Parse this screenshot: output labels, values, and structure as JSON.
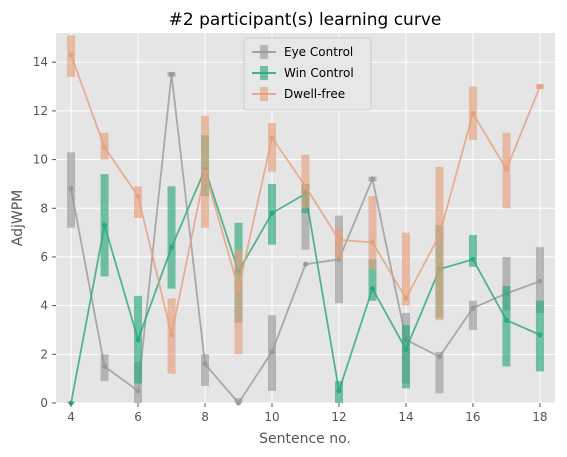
{
  "chart_data": {
    "type": "line",
    "title": "#2 participant(s) learning curve",
    "xlabel": "Sentence no.",
    "ylabel": "AdjWPM",
    "xlim": [
      3.55,
      18.45
    ],
    "ylim": [
      0,
      15.2
    ],
    "xticks": [
      4,
      6,
      8,
      10,
      12,
      14,
      16,
      18
    ],
    "yticks": [
      0,
      2,
      4,
      6,
      8,
      10,
      12,
      14
    ],
    "grid": true,
    "legend_position": "upper-center",
    "x": [
      4,
      5,
      6,
      7,
      8,
      9,
      10,
      11,
      12,
      13,
      14,
      15,
      16,
      17,
      18
    ],
    "series": [
      {
        "name": "Eye Control",
        "color": "#999999",
        "values": [
          8.8,
          1.5,
          0.5,
          13.5,
          1.6,
          0.0,
          2.1,
          5.7,
          5.9,
          9.2,
          2.6,
          1.9,
          3.9,
          4.5,
          5.0
        ],
        "boxes": [
          [
            7.2,
            10.3
          ],
          [
            0.9,
            2.0
          ],
          [
            0.0,
            1.7
          ],
          [
            13.4,
            13.6
          ],
          [
            0.7,
            2.0
          ],
          [
            0.0,
            0.2
          ],
          [
            0.5,
            3.6
          ],
          [
            6.3,
            9.0
          ],
          [
            4.1,
            7.7
          ],
          [
            9.1,
            9.3
          ],
          [
            0.8,
            3.7
          ],
          [
            0.4,
            2.1
          ],
          [
            3.0,
            4.2
          ],
          [
            3.8,
            6.0
          ],
          [
            3.7,
            6.4
          ]
        ]
      },
      {
        "name": "Win Control",
        "color": "#2ca87a",
        "values": [
          0.0,
          7.3,
          2.6,
          6.4,
          9.6,
          5.4,
          7.8,
          8.6,
          0.5,
          4.7,
          2.2,
          5.5,
          5.9,
          3.4,
          2.8
        ],
        "boxes": [
          [
            0.0,
            0.05
          ],
          [
            5.2,
            9.4
          ],
          [
            0.8,
            4.4
          ],
          [
            4.7,
            8.9
          ],
          [
            8.5,
            11.0
          ],
          [
            3.3,
            7.4
          ],
          [
            6.5,
            9.0
          ],
          [
            7.8,
            9.0
          ],
          [
            0.0,
            0.9
          ],
          [
            4.2,
            5.9
          ],
          [
            0.6,
            3.2
          ],
          [
            3.5,
            7.3
          ],
          [
            5.6,
            6.9
          ],
          [
            1.5,
            4.8
          ],
          [
            1.3,
            4.2
          ]
        ]
      },
      {
        "name": "Dwell-free",
        "color": "#e5a07e",
        "values": [
          14.3,
          10.5,
          8.5,
          2.8,
          9.5,
          4.7,
          10.9,
          8.9,
          6.7,
          6.6,
          4.3,
          6.9,
          11.9,
          9.6,
          13.0
        ],
        "boxes": [
          [
            13.4,
            15.1
          ],
          [
            10.0,
            11.1
          ],
          [
            7.6,
            8.9
          ],
          [
            1.2,
            4.3
          ],
          [
            7.2,
            11.8
          ],
          [
            2.0,
            6.3
          ],
          [
            9.5,
            11.5
          ],
          [
            8.0,
            10.2
          ],
          [
            5.9,
            7.2
          ],
          [
            5.5,
            8.5
          ],
          [
            4.0,
            7.0
          ],
          [
            3.4,
            9.7
          ],
          [
            10.8,
            13.0
          ],
          [
            8.0,
            11.1
          ],
          [
            12.9,
            13.1
          ]
        ]
      }
    ]
  }
}
